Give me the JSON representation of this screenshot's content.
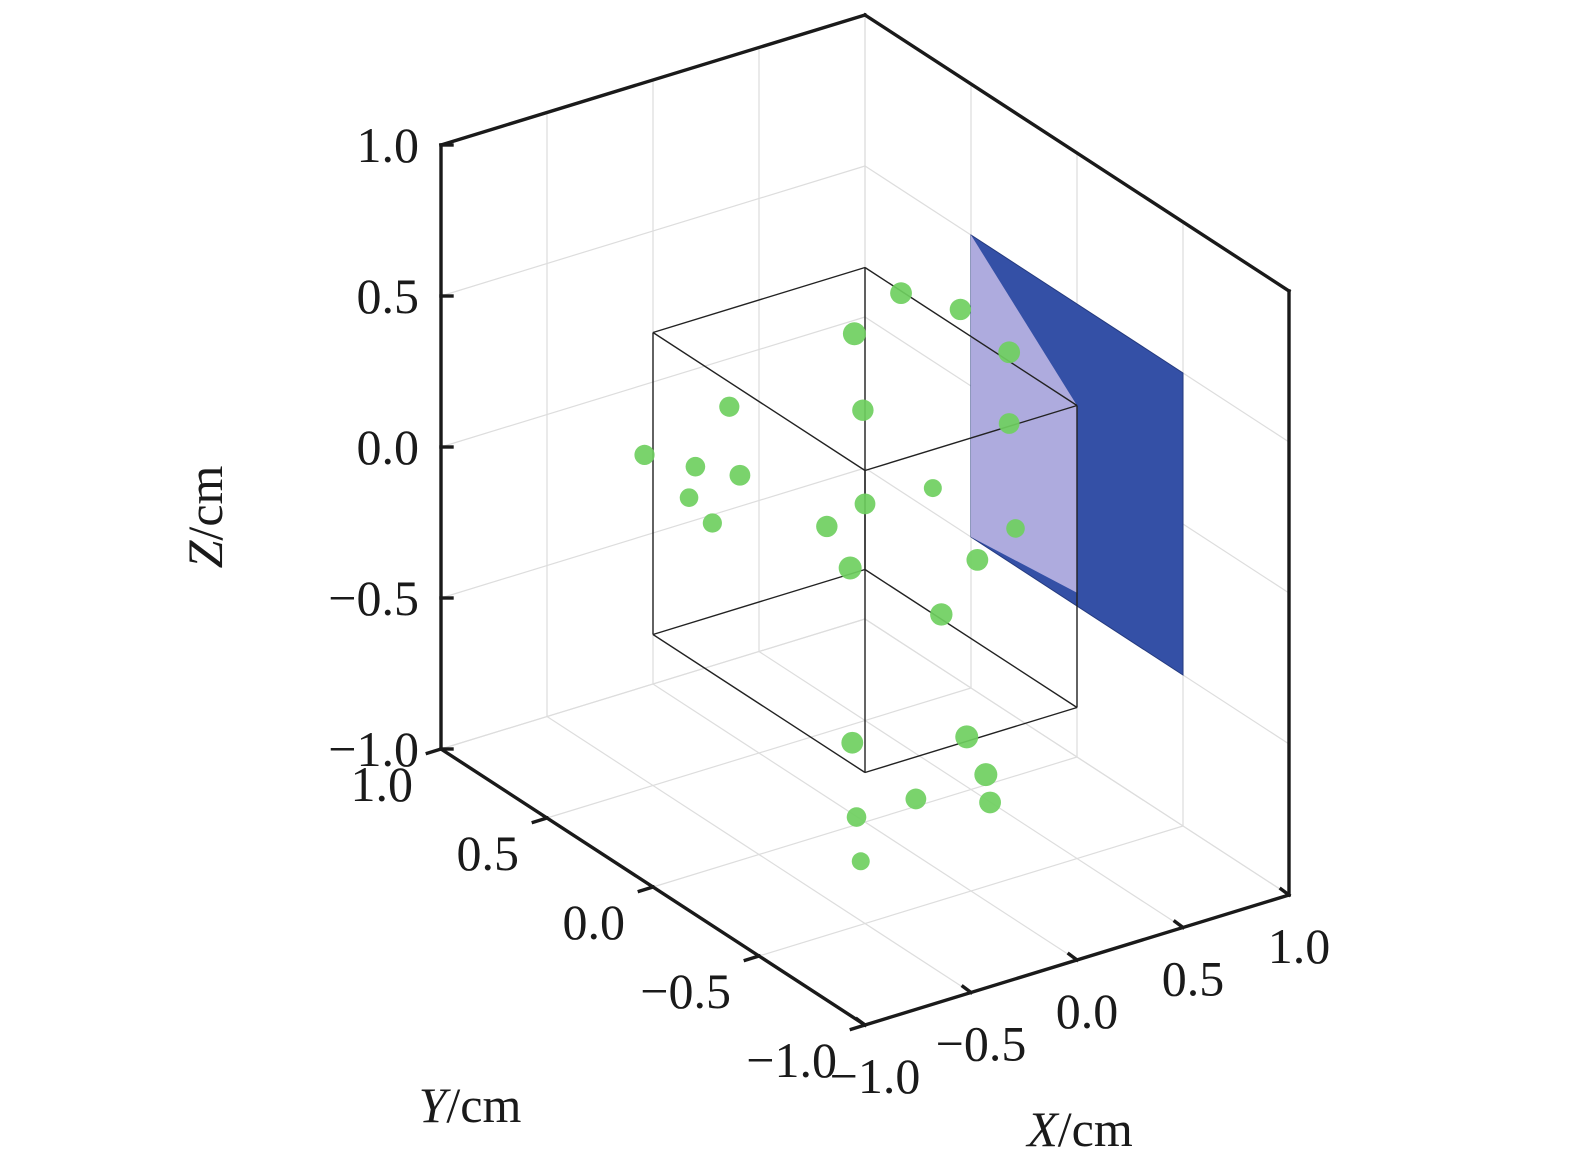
{
  "chart_data": {
    "type": "scatter3d",
    "title": "",
    "xlabel": {
      "var": "X",
      "unit": "/cm"
    },
    "ylabel": {
      "var": "Y",
      "unit": "/cm"
    },
    "zlabel": {
      "var": "Z",
      "unit": "/cm"
    },
    "xlim": [
      -1.0,
      1.0
    ],
    "ylim": [
      -1.0,
      1.0
    ],
    "zlim": [
      -1.0,
      1.0
    ],
    "ticks": [
      -1.0,
      -0.5,
      0.0,
      0.5,
      1.0
    ],
    "tick_labels": [
      "−1.0",
      "−0.5",
      "0.0",
      "0.5",
      "1.0"
    ],
    "grid": true,
    "colors": {
      "points": "#6fcf5f",
      "plane": "#3450a6",
      "plane_overlap": "#b5b0e0",
      "cube_edges": "#222222",
      "grid": "#dddddd",
      "axes": "#1a1a1a"
    },
    "cube": {
      "x": [
        -0.5,
        0.5
      ],
      "y": [
        -0.5,
        0.5
      ],
      "z": [
        -0.5,
        0.5
      ]
    },
    "plane": {
      "x": 1.0,
      "y": [
        -0.5,
        0.5
      ],
      "z": [
        -0.5,
        0.5
      ]
    },
    "points": [
      {
        "x": 0.11,
        "y": 0.16,
        "z": 0.52,
        "size": 1.0
      },
      {
        "x": 0.4,
        "y": 0.23,
        "z": 0.56,
        "size": 0.9
      },
      {
        "x": -0.18,
        "y": -0.17,
        "z": 0.48,
        "size": 0.85
      },
      {
        "x": 0.5,
        "y": -0.18,
        "z": 0.53,
        "size": 0.9
      },
      {
        "x": 0.51,
        "y": 0.06,
        "z": 0.56,
        "size": 0.85
      },
      {
        "x": 0.33,
        "y": 0.01,
        "z": 0.03,
        "size": 0.55
      },
      {
        "x": 0.33,
        "y": -0.03,
        "z": -0.37,
        "size": 0.95
      },
      {
        "x": 0.02,
        "y": 0.02,
        "z": 0.04,
        "size": 0.8
      },
      {
        "x": -0.05,
        "y": 0.13,
        "z": -0.07,
        "size": 0.85
      },
      {
        "x": -0.18,
        "y": -0.11,
        "z": -0.07,
        "size": 1.0
      },
      {
        "x": -0.24,
        "y": 0.35,
        "z": 0.04,
        "size": 0.8
      },
      {
        "x": -0.13,
        "y": 0.51,
        "z": 0.17,
        "size": 0.75
      },
      {
        "x": -0.4,
        "y": 0.4,
        "z": 0.08,
        "size": 0.7
      },
      {
        "x": -0.35,
        "y": 0.48,
        "z": -0.07,
        "size": 0.6
      },
      {
        "x": -0.43,
        "y": 0.29,
        "z": -0.05,
        "size": 0.65
      },
      {
        "x": -0.55,
        "y": 0.49,
        "z": 0.11,
        "size": 0.75
      },
      {
        "x": 0.59,
        "y": -0.12,
        "z": -0.1,
        "size": 0.6
      },
      {
        "x": 0.64,
        "y": -0.04,
        "z": 0.2,
        "size": 0.8
      },
      {
        "x": 0.03,
        "y": -0.5,
        "z": 0.09,
        "size": 0.9
      },
      {
        "x": -0.29,
        "y": -0.23,
        "z": -0.57,
        "size": 0.9
      },
      {
        "x": -0.11,
        "y": -0.35,
        "z": -0.74,
        "size": 0.8
      },
      {
        "x": -0.36,
        "y": -0.32,
        "z": -0.76,
        "size": 0.7
      },
      {
        "x": -0.46,
        "y": -0.44,
        "z": -0.83,
        "size": 0.55
      },
      {
        "x": 0.17,
        "y": -0.42,
        "z": -0.78,
        "size": 0.9
      },
      {
        "x": 0.21,
        "y": -0.27,
        "z": -0.64,
        "size": 1.0
      },
      {
        "x": 0.13,
        "y": -0.44,
        "z": -0.67,
        "size": 1.0
      }
    ]
  }
}
